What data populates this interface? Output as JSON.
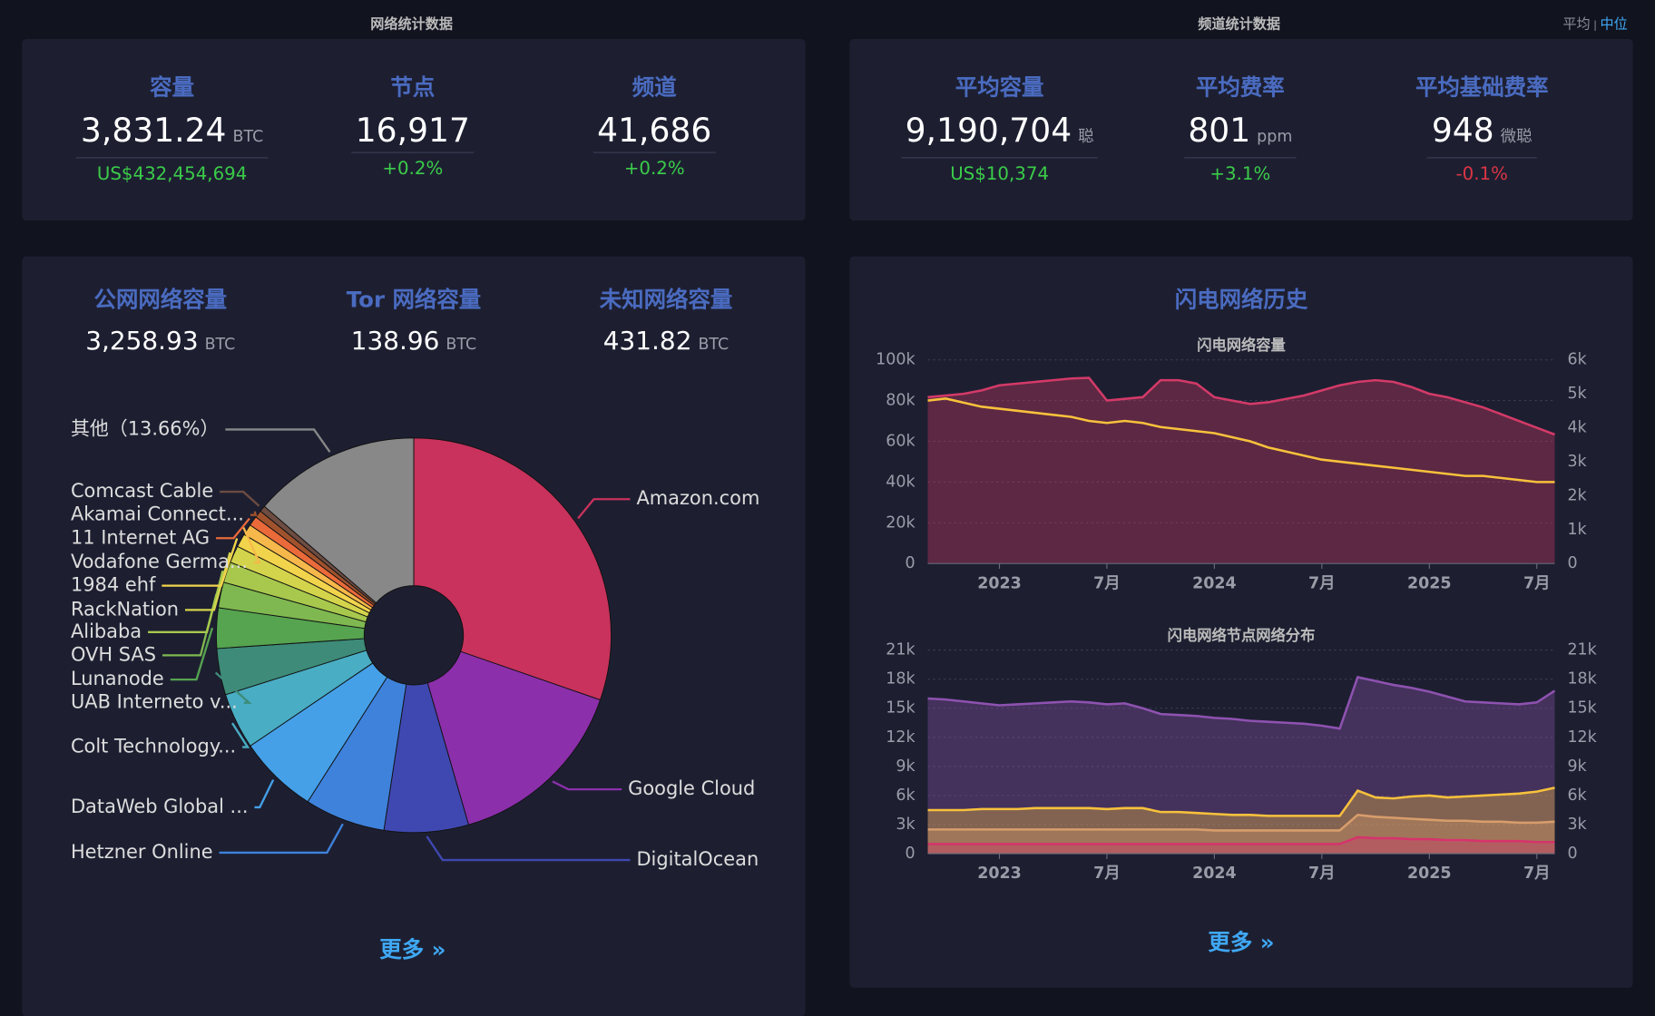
{
  "network_stats": {
    "title": "网络统计数据",
    "items": [
      {
        "label": "容量",
        "value": "3,831.24",
        "unit": "BTC",
        "sub": "US$432,454,694"
      },
      {
        "label": "节点",
        "value": "16,917",
        "sub": "+0.2%"
      },
      {
        "label": "频道",
        "value": "41,686",
        "sub": "+0.2%"
      }
    ]
  },
  "channel_stats": {
    "title": "频道统计数据",
    "toggle": [
      "平均",
      "中位"
    ],
    "toggle_separator": "|",
    "items": [
      {
        "label": "平均容量",
        "value": "9,190,704",
        "unit": "聪",
        "sub": "US$10,374"
      },
      {
        "label": "平均费率",
        "value": "801",
        "unit": "ppm",
        "sub": "+3.1%"
      },
      {
        "label": "平均基础费率",
        "value": "948",
        "unit": "微聪",
        "sub": "-0.1%"
      }
    ]
  },
  "network_capacity": {
    "items": [
      {
        "label": "公网网络容量",
        "value": "3,258.93",
        "unit": "BTC"
      },
      {
        "label": "Tor 网络容量",
        "value": "138.96",
        "unit": "BTC"
      },
      {
        "label": "未知网络容量",
        "value": "431.82",
        "unit": "BTC"
      }
    ],
    "more": "更多 »"
  },
  "history": {
    "title": "闪电网络历史",
    "more": "更多 »"
  },
  "chart_data": [
    {
      "type": "pie",
      "categories": [
        "Amazon.com",
        "Google Cloud",
        "DigitalOcean",
        "Hetzner Online",
        "DataWeb Global ...",
        "Colt Technology...",
        "UAB Interneto v...",
        "Lunanode",
        "OVH SAS",
        "Alibaba",
        "RackNation",
        "1984 ehf",
        "Vodafone Germa...",
        "11 Internet AG",
        "Akamai Connect...",
        "Comcast Cable",
        "其他（13.66%）"
      ],
      "values": [
        30.3,
        15.2,
        6.9,
        6.6,
        6.5,
        4.6,
        3.8,
        3.3,
        2.1,
        1.7,
        1.4,
        1.1,
        0.9,
        0.8,
        0.6,
        0.5,
        13.66
      ],
      "colors": [
        "#c8325c",
        "#8b2fab",
        "#3f48b0",
        "#3f82dc",
        "#45a0e8",
        "#49adc4",
        "#3d8b78",
        "#56a350",
        "#7fb850",
        "#a7c84d",
        "#d4d44c",
        "#f2d44c",
        "#f6b84a",
        "#ea6a3a",
        "#a0522d",
        "#6d4c41",
        "#888888"
      ]
    },
    {
      "type": "line",
      "title": "闪电网络容量",
      "x": [
        "2022-09",
        "2022-10",
        "2022-11",
        "2022-12",
        "2023-01",
        "2023-02",
        "2023-03",
        "2023-04",
        "2023-05",
        "2023-06",
        "2023-07",
        "2023-08",
        "2023-09",
        "2023-10",
        "2023-11",
        "2023-12",
        "2024-01",
        "2024-02",
        "2024-03",
        "2024-04",
        "2024-05",
        "2024-06",
        "2024-07",
        "2024-08",
        "2024-09",
        "2024-10",
        "2024-11",
        "2024-12",
        "2025-01",
        "2025-02",
        "2025-03",
        "2025-04",
        "2025-05",
        "2025-06",
        "2025-07",
        "2025-08"
      ],
      "xlim": [
        "2022-09",
        "2025-08"
      ],
      "xticks": [
        {
          "value": "2023-01",
          "label": "2023"
        },
        {
          "value": "2023-07",
          "label": "7月"
        },
        {
          "value": "2024-01",
          "label": "2024"
        },
        {
          "value": "2024-07",
          "label": "7月"
        },
        {
          "value": "2025-01",
          "label": "2025"
        },
        {
          "value": "2025-07",
          "label": "7月"
        }
      ],
      "ylim": [
        0,
        100000
      ],
      "yticks": [
        0,
        {
          "value": 20000,
          "label": "20k"
        },
        {
          "value": 40000,
          "label": "40k"
        },
        {
          "value": 60000,
          "label": "60k"
        },
        {
          "value": 80000,
          "label": "80k"
        },
        {
          "value": 100000,
          "label": "100k"
        }
      ],
      "y2lim": [
        0,
        6000
      ],
      "y2ticks": [
        0,
        {
          "value": 1000,
          "label": "1k"
        },
        {
          "value": 2000,
          "label": "2k"
        },
        {
          "value": 3000,
          "label": "3k"
        },
        {
          "value": 4000,
          "label": "4k"
        },
        {
          "value": 5000,
          "label": "5k"
        },
        {
          "value": 6000,
          "label": "6k"
        }
      ],
      "grid": true,
      "series": [
        {
          "color": "#d33a68",
          "axis": "y2",
          "fill": true,
          "values": [
            4900,
            4950,
            5000,
            5100,
            5250,
            5300,
            5350,
            5400,
            5450,
            5470,
            4800,
            4850,
            4900,
            5400,
            5400,
            5300,
            4900,
            4800,
            4700,
            4750,
            4850,
            4950,
            5100,
            5250,
            5350,
            5400,
            5350,
            5200,
            5000,
            4900,
            4750,
            4600,
            4400,
            4200,
            4000,
            3800
          ]
        },
        {
          "color": "#f7c13c",
          "fill": false,
          "values": [
            80000,
            81000,
            79000,
            77000,
            76000,
            75000,
            74000,
            73000,
            72000,
            70000,
            69000,
            70000,
            69000,
            67000,
            66000,
            65000,
            64000,
            62000,
            60000,
            57000,
            55000,
            53000,
            51000,
            50000,
            49000,
            48000,
            47000,
            46000,
            45000,
            44000,
            43000,
            43000,
            42000,
            41000,
            40000,
            40000
          ]
        }
      ]
    },
    {
      "type": "line",
      "title": "闪电网络节点网络分布",
      "x": [
        "2022-09",
        "2022-10",
        "2022-11",
        "2022-12",
        "2023-01",
        "2023-02",
        "2023-03",
        "2023-04",
        "2023-05",
        "2023-06",
        "2023-07",
        "2023-08",
        "2023-09",
        "2023-10",
        "2023-11",
        "2023-12",
        "2024-01",
        "2024-02",
        "2024-03",
        "2024-04",
        "2024-05",
        "2024-06",
        "2024-07",
        "2024-08",
        "2024-09",
        "2024-10",
        "2024-11",
        "2024-12",
        "2025-01",
        "2025-02",
        "2025-03",
        "2025-04",
        "2025-05",
        "2025-06",
        "2025-07",
        "2025-08"
      ],
      "xlim": [
        "2022-09",
        "2025-08"
      ],
      "xticks": [
        {
          "value": "2023-01",
          "label": "2023"
        },
        {
          "value": "2023-07",
          "label": "7月"
        },
        {
          "value": "2024-01",
          "label": "2024"
        },
        {
          "value": "2024-07",
          "label": "7月"
        },
        {
          "value": "2025-01",
          "label": "2025"
        },
        {
          "value": "2025-07",
          "label": "7月"
        }
      ],
      "ylim": [
        0,
        21000
      ],
      "yticks": [
        0,
        {
          "value": 3000,
          "label": "3k"
        },
        {
          "value": 6000,
          "label": "6k"
        },
        {
          "value": 9000,
          "label": "9k"
        },
        {
          "value": 12000,
          "label": "12k"
        },
        {
          "value": 15000,
          "label": "15k"
        },
        {
          "value": 18000,
          "label": "18k"
        },
        {
          "value": 21000,
          "label": "21k"
        }
      ],
      "y2lim": [
        0,
        21000
      ],
      "y2ticks": [
        0,
        {
          "value": 3000,
          "label": "3k"
        },
        {
          "value": 6000,
          "label": "6k"
        },
        {
          "value": 9000,
          "label": "9k"
        },
        {
          "value": 12000,
          "label": "12k"
        },
        {
          "value": 15000,
          "label": "15k"
        },
        {
          "value": 18000,
          "label": "18k"
        },
        {
          "value": 21000,
          "label": "21k"
        }
      ],
      "grid": true,
      "series": [
        {
          "color": "#8e52b0",
          "fill": true,
          "values": [
            16000,
            15900,
            15700,
            15500,
            15300,
            15400,
            15500,
            15600,
            15700,
            15600,
            15400,
            15500,
            15000,
            14400,
            14300,
            14200,
            14000,
            13900,
            13700,
            13600,
            13500,
            13400,
            13200,
            12900,
            18200,
            17800,
            17400,
            17100,
            16700,
            16200,
            15700,
            15600,
            15500,
            15400,
            15600,
            16800
          ]
        },
        {
          "color": "#f7c13c",
          "fill": true,
          "values": [
            4500,
            4500,
            4500,
            4600,
            4600,
            4600,
            4700,
            4700,
            4700,
            4700,
            4600,
            4700,
            4700,
            4300,
            4300,
            4200,
            4100,
            4000,
            4000,
            3900,
            3900,
            3900,
            3900,
            3900,
            6500,
            5800,
            5700,
            5900,
            6000,
            5800,
            5900,
            6000,
            6100,
            6200,
            6400,
            6800
          ]
        },
        {
          "color": "#d79d6b",
          "fill": true,
          "values": [
            2500,
            2500,
            2500,
            2500,
            2500,
            2500,
            2500,
            2500,
            2500,
            2500,
            2500,
            2500,
            2500,
            2500,
            2500,
            2500,
            2400,
            2400,
            2400,
            2400,
            2400,
            2400,
            2400,
            2400,
            4000,
            3800,
            3700,
            3600,
            3500,
            3400,
            3400,
            3300,
            3300,
            3200,
            3200,
            3300
          ]
        },
        {
          "color": "#d6336c",
          "fill": true,
          "values": [
            1000,
            1000,
            1000,
            1000,
            1000,
            1000,
            1000,
            1000,
            1000,
            1000,
            1000,
            1000,
            1000,
            1000,
            1000,
            1000,
            1000,
            1000,
            1000,
            1000,
            1000,
            1000,
            1000,
            1000,
            1700,
            1600,
            1600,
            1500,
            1500,
            1400,
            1400,
            1300,
            1300,
            1300,
            1200,
            1200
          ]
        }
      ]
    }
  ]
}
